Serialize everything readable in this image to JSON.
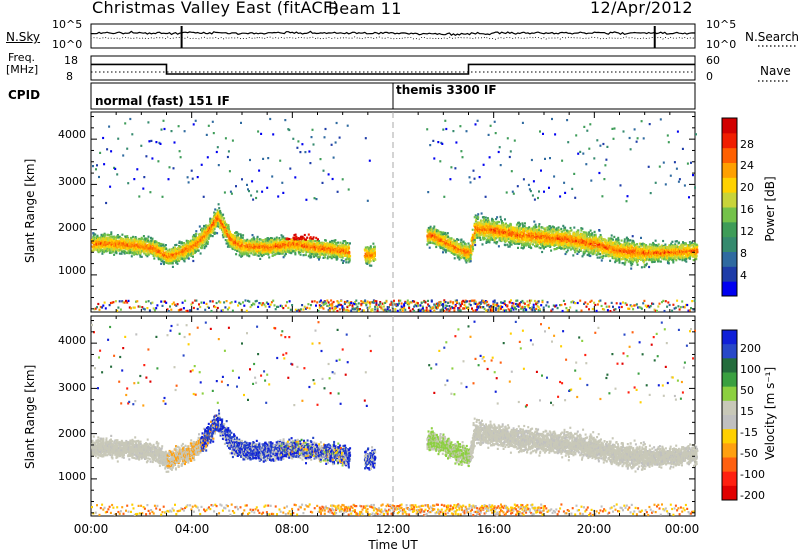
{
  "header": {
    "station": "Christmas Valley East (fitACF)",
    "beam": "Beam 11",
    "date": "12/Apr/2012"
  },
  "top_panels": {
    "sky_label": "N.Sky",
    "search_label": "N.Search",
    "sky_ticks": [
      "10^5",
      "10^0"
    ],
    "search_ticks": [
      "10^5",
      "10^0"
    ],
    "freq_label_1": "Freq.",
    "freq_label_2": "[MHz]",
    "freq_ticks": [
      "18",
      "8"
    ],
    "nave_label": "Nave",
    "nave_ticks": [
      "60",
      "0"
    ],
    "cpid_label": "CPID",
    "modes": [
      {
        "name": "normal (fast) 151 IF",
        "start_hour": 0
      },
      {
        "name": "themis 3300 IF",
        "start_hour": 12
      }
    ]
  },
  "axes": {
    "y_label": "Slant Range [km]",
    "y_ticks": [
      "4000",
      "3000",
      "2000",
      "1000"
    ],
    "x_label": "Time UT",
    "x_ticks": [
      "00:00",
      "04:00",
      "08:00",
      "12:00",
      "16:00",
      "20:00",
      "00:00"
    ]
  },
  "colorbars": {
    "power_label": "Power [dB]",
    "power_ticks": [
      "28",
      "24",
      "20",
      "16",
      "12",
      "8",
      "4"
    ],
    "power_colors": [
      "#0000f0",
      "#1e3ca8",
      "#2f6aa0",
      "#358a6e",
      "#3e9c58",
      "#74c24a",
      "#c8d43a",
      "#ffd200",
      "#ffa000",
      "#ff6000",
      "#f01e00",
      "#d20000"
    ],
    "velocity_label": "Velocity [m s⁻¹]",
    "velocity_ticks": [
      "200",
      "100",
      "50",
      "15",
      "-15",
      "-50",
      "-100",
      "-200"
    ],
    "velocity_colors": [
      "#1020d8",
      "#2848c8",
      "#246c3c",
      "#3aa040",
      "#8cd040",
      "#c8c8b8",
      "#c0c0c0",
      "#ffd000",
      "#ffa010",
      "#ff6010",
      "#ff2010",
      "#e00000"
    ]
  },
  "chart_data": {
    "type": "heatmap",
    "title": "Christmas Valley East (fitACF) Beam 11 12/Apr/2012",
    "xlabel": "Time UT",
    "ylabel": "Slant Range [km]",
    "xlim_hours": [
      0,
      24
    ],
    "ylim_km": [
      180,
      4600
    ],
    "frequency_MHz": [
      {
        "from_h": 0,
        "to_h": 3.0,
        "value": 14.5
      },
      {
        "from_h": 3.0,
        "to_h": 15.0,
        "value": 10.5
      },
      {
        "from_h": 15.0,
        "to_h": 22.0,
        "value": 14.5
      },
      {
        "from_h": 22.3,
        "to_h": 24.0,
        "value": 14.5
      }
    ],
    "power_scatter_band_km": [
      [
        0,
        1700
      ],
      [
        0.5,
        1720
      ],
      [
        1,
        1700
      ],
      [
        1.5,
        1680
      ],
      [
        2,
        1650
      ],
      [
        2.5,
        1600
      ],
      [
        3,
        1420
      ],
      [
        3.5,
        1520
      ],
      [
        4,
        1650
      ],
      [
        4.5,
        1900
      ],
      [
        5,
        2300
      ],
      [
        5.5,
        1800
      ],
      [
        6,
        1650
      ],
      [
        7,
        1630
      ],
      [
        8,
        1700
      ],
      [
        9,
        1620
      ],
      [
        10,
        1550
      ],
      [
        11,
        1450
      ],
      [
        13.5,
        1900
      ],
      [
        14,
        1750
      ],
      [
        14.5,
        1600
      ],
      [
        15,
        1500
      ],
      [
        15.2,
        2050
      ],
      [
        16,
        2000
      ],
      [
        17,
        1900
      ],
      [
        18,
        1850
      ],
      [
        19,
        1800
      ],
      [
        20,
        1700
      ],
      [
        21,
        1550
      ],
      [
        22,
        1500
      ],
      [
        23,
        1520
      ],
      [
        24,
        1550
      ]
    ],
    "power_range_dB": [
      0,
      30
    ],
    "velocity_range_m_s": [
      -200,
      200
    ]
  }
}
